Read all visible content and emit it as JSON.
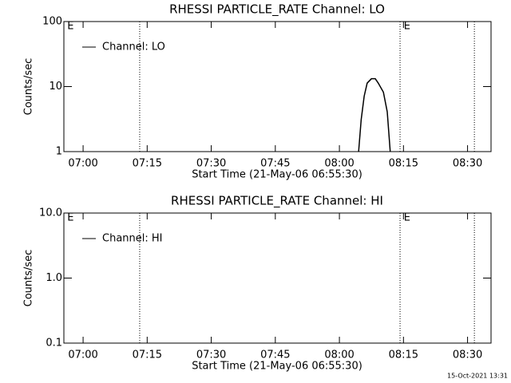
{
  "chart_data": [
    {
      "type": "line",
      "title": "RHESSI PARTICLE_RATE Channel: LO",
      "xlabel": "Start Time (21-May-06 06:55:30)",
      "ylabel": "Counts/sec",
      "log_y": true,
      "legend": "upper left",
      "xlim": [
        0,
        100
      ],
      "xticks": [
        {
          "value": 4.5,
          "label": "07:00"
        },
        {
          "value": 19.5,
          "label": "07:15"
        },
        {
          "value": 34.5,
          "label": "07:30"
        },
        {
          "value": 49.5,
          "label": "07:45"
        },
        {
          "value": 64.5,
          "label": "08:00"
        },
        {
          "value": 79.5,
          "label": "08:15"
        },
        {
          "value": 94.5,
          "label": "08:30"
        }
      ],
      "ylim": [
        1,
        100
      ],
      "yticks": [
        1,
        10,
        100
      ],
      "vlines": [
        17.75,
        78.7,
        96.1
      ],
      "flags": [
        {
          "x": 0.6,
          "label": "E"
        },
        {
          "x": 79.4,
          "label": "E"
        }
      ],
      "series": [
        {
          "name": "Channel: LO",
          "color": "#000000",
          "x": [
            69,
            69.6,
            70.3,
            71.0,
            72.0,
            72.9,
            73.6,
            74.8,
            75.7,
            76.4
          ],
          "values": [
            1,
            3.1,
            7.1,
            11.3,
            13.2,
            13.2,
            11.3,
            8.2,
            4.1,
            1
          ]
        }
      ]
    },
    {
      "type": "line",
      "title": "RHESSI PARTICLE_RATE Channel: HI",
      "xlabel": "Start Time (21-May-06 06:55:30)",
      "ylabel": "Counts/sec",
      "log_y": true,
      "legend": "upper left",
      "xlim": [
        0,
        100
      ],
      "xticks": [
        {
          "value": 4.5,
          "label": "07:00"
        },
        {
          "value": 19.5,
          "label": "07:15"
        },
        {
          "value": 34.5,
          "label": "07:30"
        },
        {
          "value": 49.5,
          "label": "07:45"
        },
        {
          "value": 64.5,
          "label": "08:00"
        },
        {
          "value": 79.5,
          "label": "08:15"
        },
        {
          "value": 94.5,
          "label": "08:30"
        }
      ],
      "ylim": [
        0.1,
        10
      ],
      "yticks": [
        0.1,
        {
          "value": 1,
          "label": "1.0"
        },
        {
          "value": 10,
          "label": "10.0"
        }
      ],
      "vlines": [
        17.75,
        78.7,
        96.1
      ],
      "flags": [
        {
          "x": 0.6,
          "label": "E"
        },
        {
          "x": 79.4,
          "label": "E"
        }
      ],
      "series": [
        {
          "name": "Channel: HI",
          "color": "#000000",
          "x": [],
          "values": []
        }
      ]
    }
  ],
  "footer": "15-Oct-2021 13:31"
}
